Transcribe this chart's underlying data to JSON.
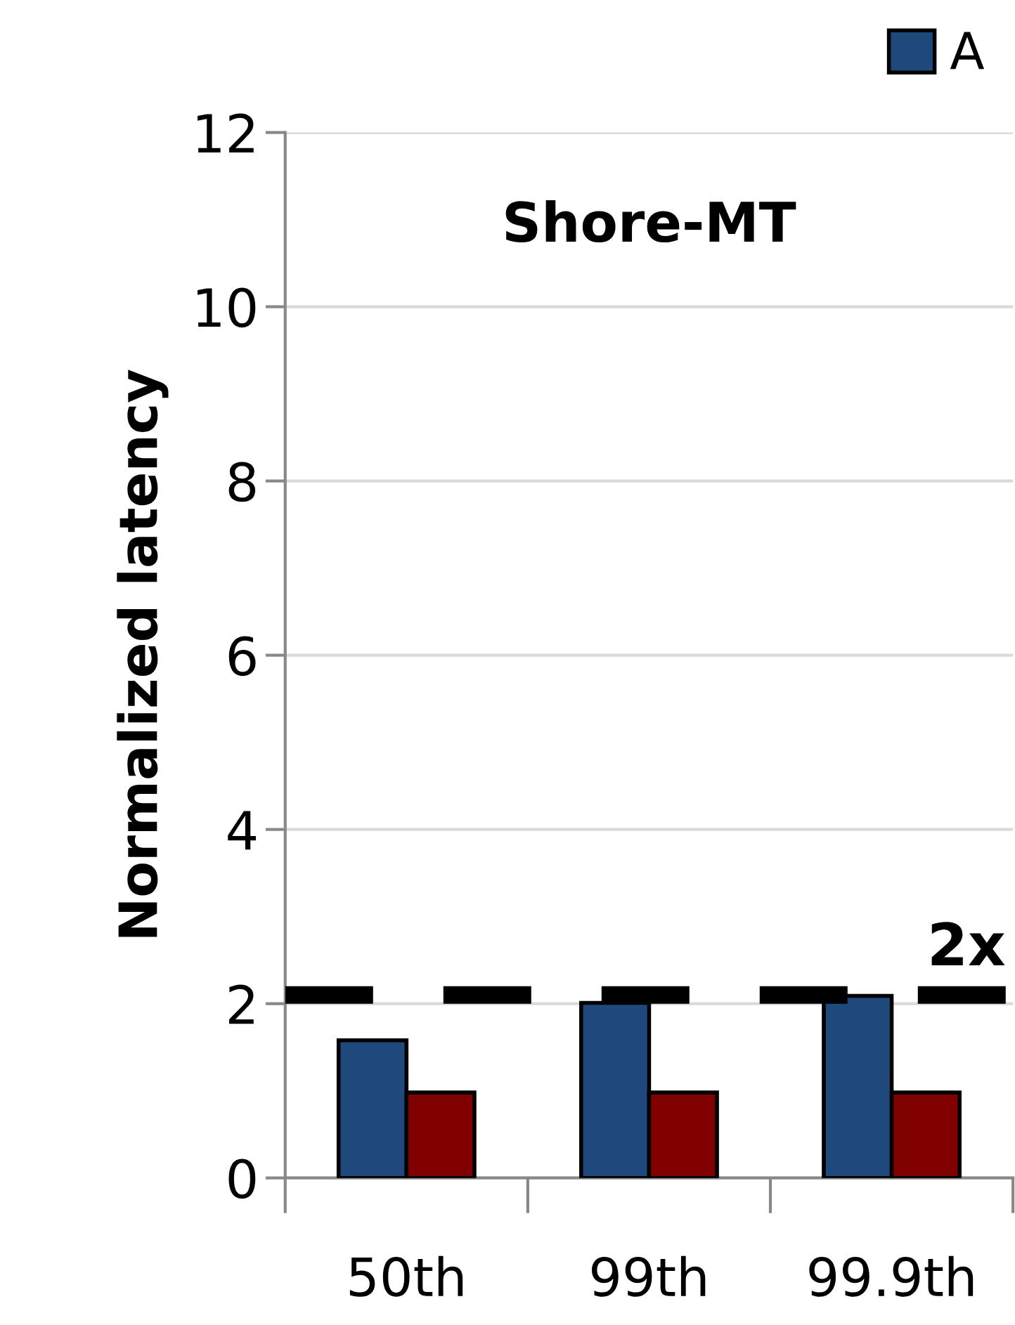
{
  "chart_data": {
    "type": "bar",
    "title": "Shore-MT",
    "ylabel": "Normalized latency",
    "categories": [
      "50th",
      "99th",
      "99.9th"
    ],
    "series": [
      {
        "name": "A",
        "color": "#1f497d",
        "values": [
          1.58,
          2.01,
          2.09
        ]
      },
      {
        "color": "#800000",
        "values": [
          0.98,
          0.98,
          0.98
        ]
      }
    ],
    "ylim": [
      0,
      12
    ],
    "yticks": [
      0,
      2,
      4,
      6,
      8,
      10,
      12
    ],
    "grid": "y",
    "legend": "top right",
    "ref_lines": [
      {
        "axis": "y",
        "value": 2.1,
        "label": "2x",
        "color": "#000000",
        "line_style": "dashed"
      }
    ]
  }
}
